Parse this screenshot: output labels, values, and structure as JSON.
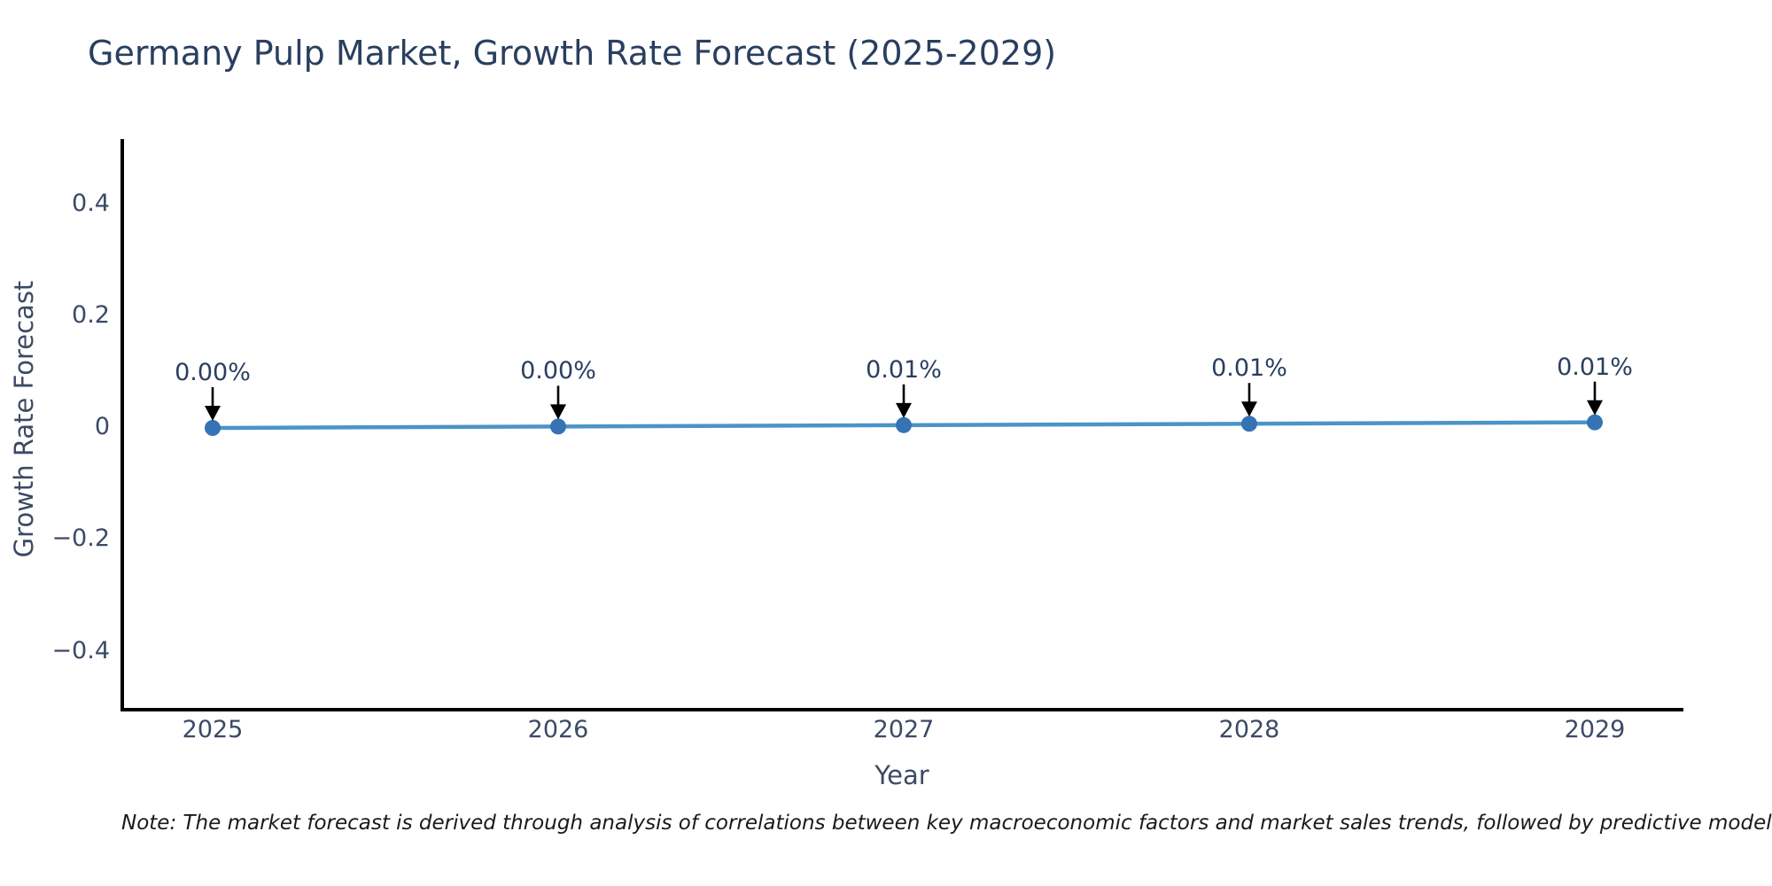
{
  "chart_data": {
    "type": "line",
    "title": "Germany Pulp Market, Growth Rate Forecast (2025-2029)",
    "xlabel": "Year",
    "ylabel": "Growth Rate Forecast",
    "categories": [
      "2025",
      "2026",
      "2027",
      "2028",
      "2029"
    ],
    "series": [
      {
        "name": "Growth Rate Forecast",
        "values_percent": [
          0.0,
          0.0025,
          0.005,
          0.0075,
          0.01
        ],
        "point_labels": [
          "0.00%",
          "0.00%",
          "0.01%",
          "0.01%",
          "0.01%"
        ]
      }
    ],
    "yticks": [
      {
        "label": "0.4",
        "value": 0.4
      },
      {
        "label": "0.2",
        "value": 0.2
      },
      {
        "label": "0",
        "value": 0
      },
      {
        "label": "−0.2",
        "value": -0.2
      },
      {
        "label": "−0.4",
        "value": -0.4
      }
    ],
    "ylim": [
      -0.5,
      0.52
    ],
    "grid": false,
    "legend_position": "none",
    "annotation_style": "black-down-arrows",
    "colors": {
      "line": "#4a94c8",
      "marker": "#3573b4",
      "axis": "#000000",
      "title_text": "#2a3f5f",
      "tick_text": "#3c4a66",
      "arrow": "#000000",
      "note_text": "#1a1a1a"
    }
  },
  "note": "Note: The market forecast is derived through analysis of correlations between key macroeconomic factors and market sales trends, followed by predictive modeling to project future sa"
}
